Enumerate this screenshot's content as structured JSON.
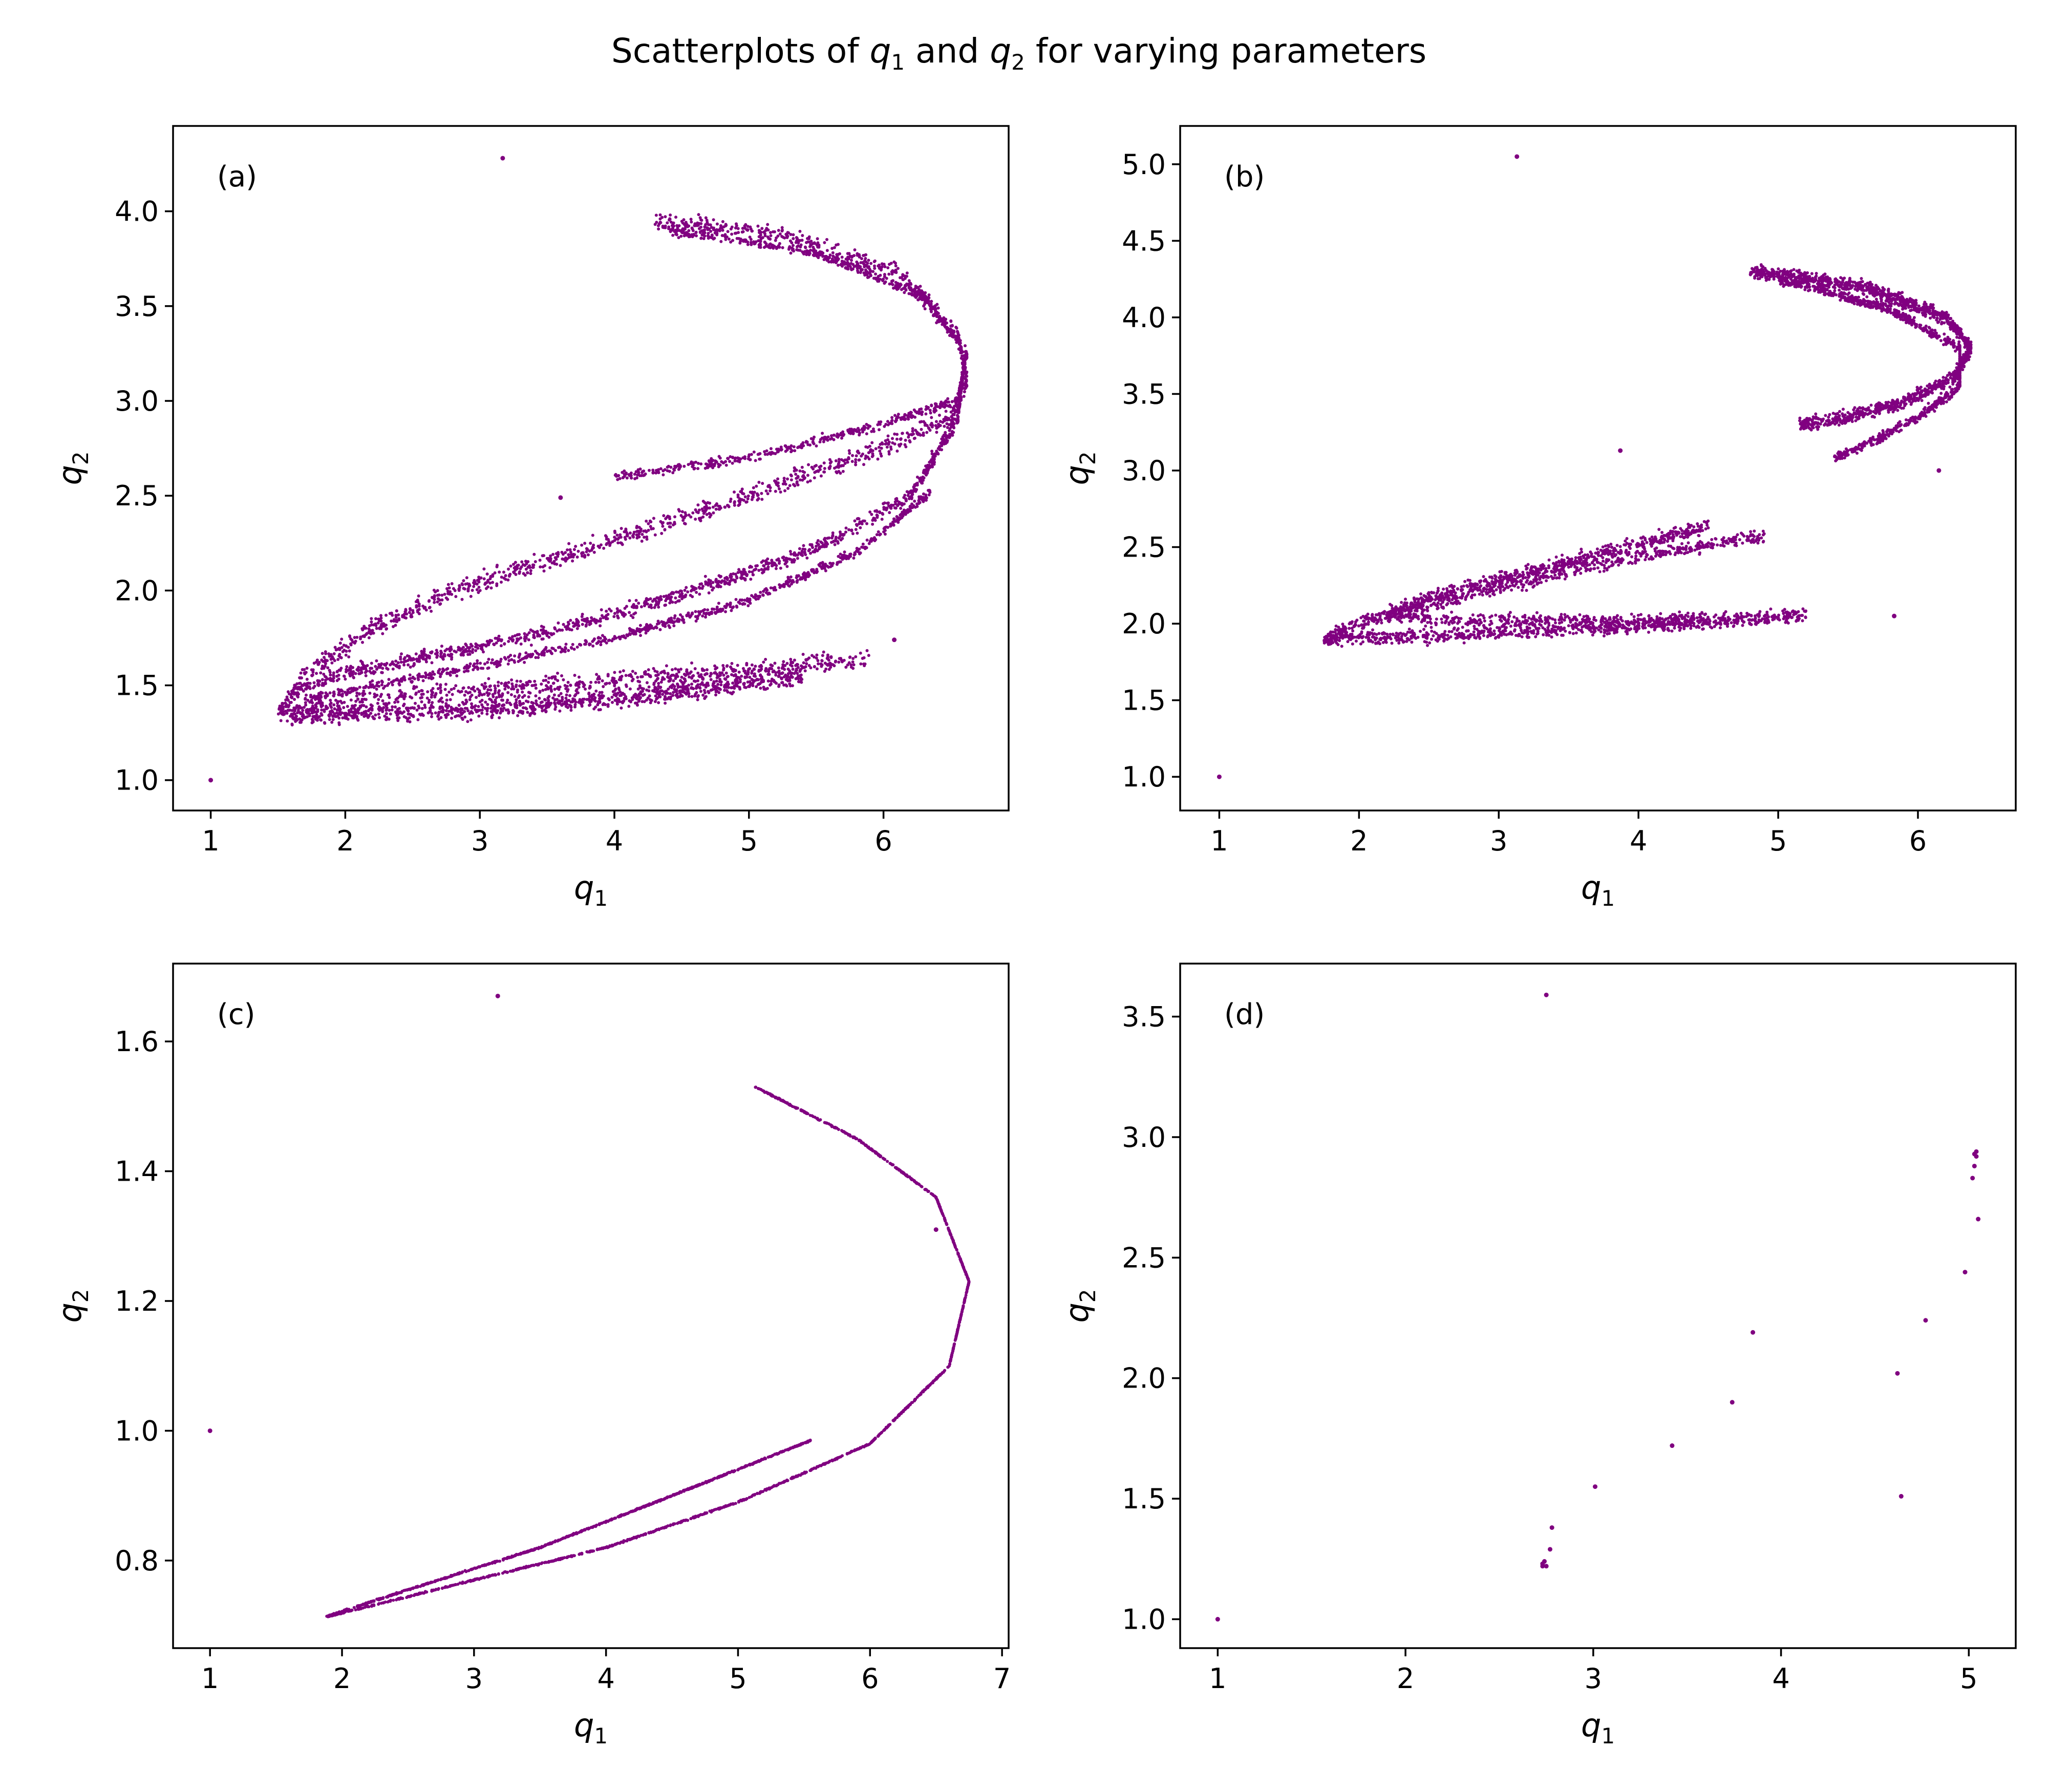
{
  "figure": {
    "title_prefix": "Scatterplots of ",
    "title_var1": "q",
    "title_sub1": "1",
    "title_mid": " and ",
    "title_var2": "q",
    "title_sub2": "2",
    "title_suffix": " for varying parameters"
  },
  "colors": {
    "points": "#800080",
    "axes": "#000000",
    "background": "#ffffff"
  },
  "chart_data": [
    {
      "type": "scatter",
      "panel": "(a)",
      "xlabel": "q1",
      "ylabel": "q2",
      "xlim": [
        0.72,
        6.93
      ],
      "ylim": [
        0.84,
        4.45
      ],
      "xticks": [
        1,
        2,
        3,
        4,
        5,
        6
      ],
      "yticks": [
        1.0,
        1.5,
        2.0,
        2.5,
        3.0,
        3.5,
        4.0
      ],
      "grid": false,
      "isolated_points": [
        [
          1.0,
          1.0
        ],
        [
          3.17,
          4.28
        ],
        [
          3.6,
          2.49
        ],
        [
          6.08,
          1.74
        ]
      ],
      "curves": [
        {
          "points": [
            [
              4.3,
              3.95
            ],
            [
              5.2,
              3.88
            ],
            [
              6.1,
              3.68
            ],
            [
              6.55,
              3.35
            ],
            [
              6.62,
              3.1
            ],
            [
              6.5,
              2.9
            ],
            [
              5.8,
              2.7
            ],
            [
              4.8,
              2.45
            ],
            [
              3.8,
              2.22
            ],
            [
              2.8,
              2.0
            ],
            [
              2.2,
              1.8
            ],
            [
              1.7,
              1.55
            ],
            [
              1.5,
              1.35
            ],
            [
              2.5,
              1.45
            ],
            [
              3.8,
              1.52
            ],
            [
              5.0,
              1.58
            ],
            [
              5.9,
              1.64
            ]
          ],
          "spread": 0.04,
          "n": 2200
        },
        {
          "points": [
            [
              4.4,
              3.9
            ],
            [
              5.5,
              3.78
            ],
            [
              6.3,
              3.55
            ],
            [
              6.62,
              3.25
            ],
            [
              6.55,
              3.0
            ],
            [
              6.0,
              2.88
            ],
            [
              5.0,
              2.7
            ],
            [
              4.0,
              2.6
            ]
          ],
          "spread": 0.02,
          "n": 900
        },
        {
          "points": [
            [
              6.6,
              3.2
            ],
            [
              6.55,
              2.9
            ],
            [
              6.2,
              2.5
            ],
            [
              5.5,
              2.22
            ],
            [
              4.5,
              1.98
            ],
            [
              3.5,
              1.78
            ],
            [
              2.4,
              1.62
            ],
            [
              1.9,
              1.55
            ],
            [
              1.6,
              1.45
            ]
          ],
          "spread": 0.03,
          "n": 1200
        },
        {
          "points": [
            [
              6.35,
              2.52
            ],
            [
              5.8,
              2.2
            ],
            [
              5.0,
              1.95
            ],
            [
              4.0,
              1.75
            ],
            [
              3.0,
              1.6
            ],
            [
              2.2,
              1.5
            ],
            [
              1.7,
              1.42
            ]
          ],
          "spread": 0.02,
          "n": 800
        },
        {
          "points": [
            [
              1.6,
              1.34
            ],
            [
              2.5,
              1.36
            ],
            [
              3.5,
              1.4
            ],
            [
              4.5,
              1.47
            ],
            [
              5.4,
              1.55
            ]
          ],
          "spread": 0.04,
          "n": 1000
        }
      ]
    },
    {
      "type": "scatter",
      "panel": "(b)",
      "xlabel": "q1",
      "ylabel": "q2",
      "xlim": [
        0.72,
        6.7
      ],
      "ylim": [
        0.78,
        5.25
      ],
      "xticks": [
        1,
        2,
        3,
        4,
        5,
        6
      ],
      "yticks": [
        1.0,
        1.5,
        2.0,
        2.5,
        3.0,
        3.5,
        4.0,
        4.5,
        5.0
      ],
      "grid": false,
      "isolated_points": [
        [
          1.0,
          1.0
        ],
        [
          3.13,
          5.05
        ],
        [
          3.87,
          3.13
        ],
        [
          5.83,
          2.05
        ],
        [
          6.15,
          3.0
        ]
      ],
      "curves": [
        {
          "points": [
            [
              4.8,
              4.3
            ],
            [
              5.6,
              4.2
            ],
            [
              6.2,
              4.0
            ],
            [
              6.38,
              3.8
            ],
            [
              6.25,
              3.6
            ],
            [
              5.9,
              3.45
            ],
            [
              5.5,
              3.35
            ],
            [
              5.15,
              3.3
            ]
          ],
          "spread": 0.03,
          "n": 1400
        },
        {
          "points": [
            [
              5.0,
              4.25
            ],
            [
              5.8,
              4.05
            ],
            [
              6.3,
              3.8
            ],
            [
              6.3,
              3.55
            ],
            [
              6.0,
              3.35
            ],
            [
              5.7,
              3.2
            ],
            [
              5.4,
              3.08
            ]
          ],
          "spread": 0.02,
          "n": 900
        },
        {
          "points": [
            [
              4.5,
              2.64
            ],
            [
              3.5,
              2.4
            ],
            [
              2.6,
              2.2
            ],
            [
              2.0,
              2.0
            ],
            [
              1.75,
              1.9
            ],
            [
              2.5,
              1.92
            ],
            [
              3.5,
              1.96
            ],
            [
              4.5,
              2.01
            ],
            [
              5.2,
              2.06
            ]
          ],
          "spread": 0.03,
          "n": 1600
        },
        {
          "points": [
            [
              4.9,
              2.58
            ],
            [
              3.8,
              2.4
            ],
            [
              2.8,
              2.2
            ],
            [
              2.2,
              2.05
            ],
            [
              2.8,
              2.02
            ],
            [
              4.0,
              2.02
            ],
            [
              4.5,
              2.03
            ]
          ],
          "spread": 0.03,
          "n": 1000
        }
      ]
    },
    {
      "type": "scatter",
      "panel": "(c)",
      "xlabel": "q1",
      "ylabel": "q2",
      "xlim": [
        0.72,
        7.05
      ],
      "ylim": [
        0.665,
        1.72
      ],
      "xticks": [
        1,
        2,
        3,
        4,
        5,
        6,
        7
      ],
      "yticks": [
        0.8,
        1.0,
        1.2,
        1.4,
        1.6
      ],
      "grid": false,
      "isolated_points": [
        [
          1.0,
          1.0
        ],
        [
          3.18,
          1.67
        ],
        [
          6.5,
          1.31
        ]
      ],
      "curves": [
        {
          "points": [
            [
              5.13,
              1.53
            ],
            [
              5.9,
              1.45
            ],
            [
              6.5,
              1.36
            ],
            [
              6.75,
              1.23
            ],
            [
              6.6,
              1.1
            ],
            [
              6.0,
              0.98
            ],
            [
              5.0,
              0.89
            ],
            [
              4.0,
              0.82
            ],
            [
              3.0,
              0.77
            ],
            [
              1.88,
              0.713
            ]
          ],
          "spread": 0.003,
          "n": 1400
        },
        {
          "points": [
            [
              5.55,
              0.985
            ],
            [
              4.5,
              0.9
            ],
            [
              3.5,
              0.82
            ],
            [
              2.5,
              0.755
            ],
            [
              1.9,
              0.715
            ]
          ],
          "spread": 0.003,
          "n": 800
        }
      ]
    },
    {
      "type": "scatter",
      "panel": "(d)",
      "xlabel": "q1",
      "ylabel": "q2",
      "xlim": [
        0.8,
        5.25
      ],
      "ylim": [
        0.88,
        3.72
      ],
      "xticks": [
        1,
        2,
        3,
        4,
        5
      ],
      "yticks": [
        1.0,
        1.5,
        2.0,
        2.5,
        3.0,
        3.5
      ],
      "grid": false,
      "isolated_points": [
        [
          1.0,
          1.0
        ],
        [
          2.73,
          1.22
        ],
        [
          2.73,
          1.23
        ],
        [
          2.74,
          1.24
        ],
        [
          2.75,
          1.22
        ],
        [
          2.77,
          1.29
        ],
        [
          2.78,
          1.38
        ],
        [
          2.75,
          3.59
        ],
        [
          3.01,
          1.55
        ],
        [
          3.42,
          1.72
        ],
        [
          3.74,
          1.9
        ],
        [
          3.85,
          2.19
        ],
        [
          4.62,
          2.02
        ],
        [
          4.64,
          1.51
        ],
        [
          4.77,
          2.24
        ],
        [
          4.98,
          2.44
        ],
        [
          5.02,
          2.83
        ],
        [
          5.03,
          2.88
        ],
        [
          5.03,
          2.93
        ],
        [
          5.04,
          2.94
        ],
        [
          5.04,
          2.92
        ],
        [
          5.05,
          2.66
        ]
      ],
      "curves": []
    }
  ]
}
